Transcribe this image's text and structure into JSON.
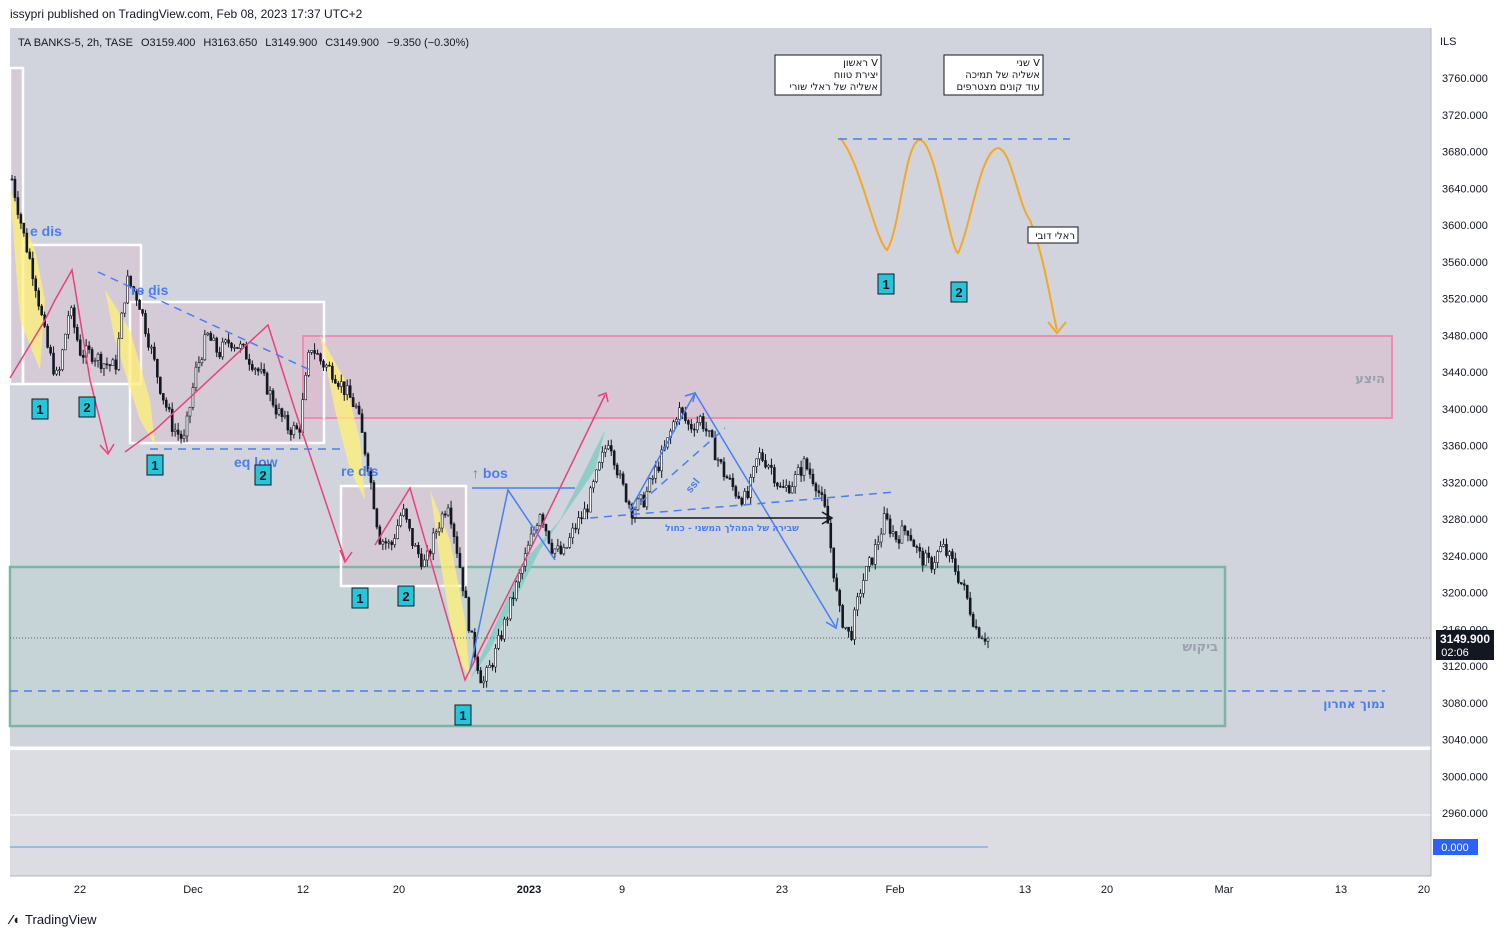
{
  "header": {
    "published": "issypri published on TradingView.com, Feb 08, 2023 17:37 UTC+2"
  },
  "legend": {
    "symbol": "TA BANKS-5, 2h, TASE",
    "open": "O3159.400",
    "high": "H3163.650",
    "low": "L3149.900",
    "close": "C3149.900",
    "change": "−9.350 (−0.30%)"
  },
  "footer": {
    "brand": "TradingView"
  },
  "colors": {
    "background": "#d1d4dc",
    "volume_pane": "#dbdde2",
    "candle": "#131722",
    "supply_zone": "#f28bb0",
    "demand_zone": "#7fb3a6",
    "blue_annotation": "#4a7df0",
    "orange_path": "#f5a623",
    "pink_arrow": "#ec407a",
    "yellow_highlight": "#fff176",
    "teal_highlight": "#80cbc4",
    "price_label": "#131722"
  },
  "chart_data": {
    "type": "candlestick",
    "symbol": "TA BANKS-5",
    "interval": "2h",
    "exchange": "TASE",
    "currency": "ILS",
    "ylim": [
      2920,
      3800
    ],
    "y_ticks": [
      "3760.000",
      "3720.000",
      "3680.000",
      "3640.000",
      "3600.000",
      "3560.000",
      "3520.000",
      "3480.000",
      "3440.000",
      "3400.000",
      "3360.000",
      "3320.000",
      "3280.000",
      "3240.000",
      "3200.000",
      "3160.000",
      "3120.000",
      "3080.000",
      "3040.000",
      "3000.000",
      "2960.000"
    ],
    "x_ticks": [
      "22",
      "Dec",
      "12",
      "20",
      "2023",
      "9",
      "23",
      "Feb",
      "13",
      "20",
      "Mar",
      "13",
      "20"
    ],
    "last_price": "3149.900",
    "countdown": "02:06",
    "indicator_value": "0.000",
    "price_path": [
      [
        3650
      ],
      [
        3590
      ],
      [
        3540
      ],
      [
        3470
      ],
      [
        3430
      ],
      [
        3510
      ],
      [
        3460
      ],
      [
        3460
      ],
      [
        3450
      ],
      [
        3445
      ],
      [
        3540
      ],
      [
        3520
      ],
      [
        3470
      ],
      [
        3420
      ],
      [
        3380
      ],
      [
        3365
      ],
      [
        3440
      ],
      [
        3480
      ],
      [
        3460
      ],
      [
        3475
      ],
      [
        3465
      ],
      [
        3450
      ],
      [
        3430
      ],
      [
        3400
      ],
      [
        3380
      ],
      [
        3375
      ],
      [
        3470
      ],
      [
        3450
      ],
      [
        3440
      ],
      [
        3420
      ],
      [
        3400
      ],
      [
        3340
      ],
      [
        3260
      ],
      [
        3250
      ],
      [
        3290
      ],
      [
        3250
      ],
      [
        3230
      ],
      [
        3270
      ],
      [
        3300
      ],
      [
        3230
      ],
      [
        3150
      ],
      [
        3100
      ],
      [
        3130
      ],
      [
        3170
      ],
      [
        3210
      ],
      [
        3250
      ],
      [
        3290
      ],
      [
        3250
      ],
      [
        3240
      ],
      [
        3270
      ],
      [
        3290
      ],
      [
        3330
      ],
      [
        3370
      ],
      [
        3320
      ],
      [
        3290
      ],
      [
        3300
      ],
      [
        3330
      ],
      [
        3360
      ],
      [
        3400
      ],
      [
        3380
      ],
      [
        3390
      ],
      [
        3360
      ],
      [
        3330
      ],
      [
        3310
      ],
      [
        3300
      ],
      [
        3350
      ],
      [
        3340
      ],
      [
        3310
      ],
      [
        3320
      ],
      [
        3340
      ],
      [
        3320
      ],
      [
        3280
      ],
      [
        3180
      ],
      [
        3150
      ],
      [
        3210
      ],
      [
        3240
      ],
      [
        3280
      ],
      [
        3260
      ],
      [
        3270
      ],
      [
        3240
      ],
      [
        3230
      ],
      [
        3250
      ],
      [
        3230
      ],
      [
        3200
      ],
      [
        3160
      ],
      [
        3150
      ]
    ],
    "zones": [
      {
        "label": "היצע",
        "kind": "supply",
        "range": [
          3390,
          3480
        ]
      },
      {
        "label": "ביקוש",
        "kind": "demand",
        "range": [
          3055,
          3230
        ]
      }
    ],
    "levels": [
      {
        "label": "נמוך אחרון",
        "value": 3090
      }
    ],
    "annotations": {
      "re_dis": [
        "e dis",
        "re dis",
        "re dis"
      ],
      "eq_low": "eq low",
      "bos": "↑ bos",
      "ssl": "ssl",
      "break_note": "שבירה של המהלך המשני - כחול",
      "bear_rally": "ראלי דובי",
      "note_first": [
        "ראשון V",
        "יצירת טווח",
        "אשליה של ראלי שורי"
      ],
      "note_second": [
        "שני V",
        "אשליה של תמיכה",
        "עוד קונים מצטרפים"
      ],
      "badges": [
        "1",
        "2",
        "1",
        "2",
        "1",
        "2",
        "1",
        "1",
        "2"
      ]
    }
  }
}
